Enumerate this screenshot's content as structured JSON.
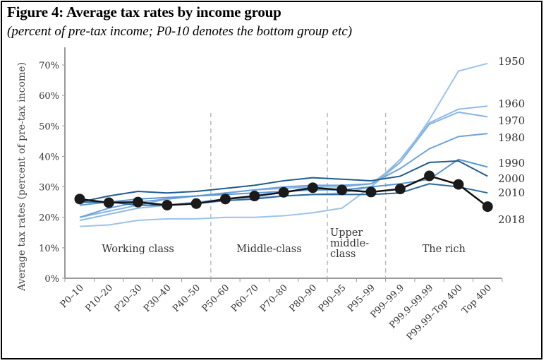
{
  "chart_data": {
    "type": "line",
    "title": "Figure 4: Average tax rates by income group",
    "subtitle": "(percent of pre-tax income; P0-10 denotes the bottom group etc)",
    "xlabel": "",
    "ylabel": "Average tax rates (percent of pre-tax income)",
    "ylim": [
      0,
      70
    ],
    "yticks": [
      0,
      10,
      20,
      30,
      40,
      50,
      60,
      70
    ],
    "ytick_labels": [
      "0%",
      "10%",
      "20%",
      "30%",
      "40%",
      "50%",
      "60%",
      "70%"
    ],
    "grid": false,
    "categories": [
      "P0–10",
      "P10–20",
      "P20–30",
      "P30–40",
      "P40–50",
      "P50–60",
      "P60–70",
      "P70–80",
      "P80–90",
      "P90–95",
      "P95–99",
      "P99–99.9",
      "P99.9–99.99",
      "P99.99–Top 400",
      "Top 400"
    ],
    "regions": [
      {
        "label": "Working class",
        "from_index": 0,
        "to_index": 4
      },
      {
        "label": "Middle-class",
        "from_index": 5,
        "to_index": 8
      },
      {
        "label": "Upper middle-class",
        "lines": [
          "Upper",
          "middle-",
          "class"
        ],
        "from_index": 9,
        "to_index": 10
      },
      {
        "label": "The rich",
        "from_index": 11,
        "to_index": 14
      }
    ],
    "region_dividers_after_index": [
      4,
      8,
      10
    ],
    "series": [
      {
        "name": "1950",
        "color": "#9cc3ea",
        "values": [
          17,
          17.5,
          19,
          19.5,
          19.5,
          20,
          20,
          20.5,
          21.5,
          23,
          30,
          38,
          52,
          68,
          70.5
        ]
      },
      {
        "name": "1960",
        "color": "#8fbbe6",
        "values": [
          19,
          21,
          23,
          24,
          25,
          26,
          26.5,
          27,
          27.5,
          28,
          30,
          39,
          51,
          55.5,
          56.5
        ]
      },
      {
        "name": "1970",
        "color": "#86b5e3",
        "values": [
          20,
          22,
          24,
          26,
          27,
          28,
          29,
          29.5,
          30,
          30,
          31,
          38,
          50.5,
          54.5,
          53
        ]
      },
      {
        "name": "1980",
        "color": "#6ea3da",
        "values": [
          20,
          23,
          25,
          26,
          27,
          28,
          29,
          30,
          30.5,
          30.5,
          31,
          36,
          42.5,
          46.5,
          47.5
        ]
      },
      {
        "name": "1990",
        "color": "#5b96d3",
        "values": [
          24,
          25,
          26,
          26.5,
          27,
          27.5,
          28,
          28.5,
          29,
          29,
          30,
          31,
          32.5,
          39,
          36.5
        ]
      },
      {
        "name": "2000",
        "color": "#1f5d8f",
        "values": [
          25,
          27,
          28.5,
          28,
          28.5,
          29.5,
          30.5,
          32,
          33,
          32.5,
          32,
          33.5,
          38,
          38.5,
          33.5
        ]
      },
      {
        "name": "2010",
        "color": "#2c6a9e",
        "values": [
          25,
          25,
          24,
          24,
          24.5,
          25.5,
          26,
          27,
          27.5,
          27.5,
          27.5,
          28,
          31,
          30,
          28
        ]
      },
      {
        "name": "2018",
        "color": "#111111",
        "marker": "circle",
        "values": [
          26,
          24.8,
          25,
          24,
          24.5,
          26,
          27,
          28.2,
          29.7,
          29,
          28.3,
          29.3,
          33.6,
          30.8,
          23.5
        ]
      }
    ],
    "legend": "direct labels at right end of lines"
  }
}
